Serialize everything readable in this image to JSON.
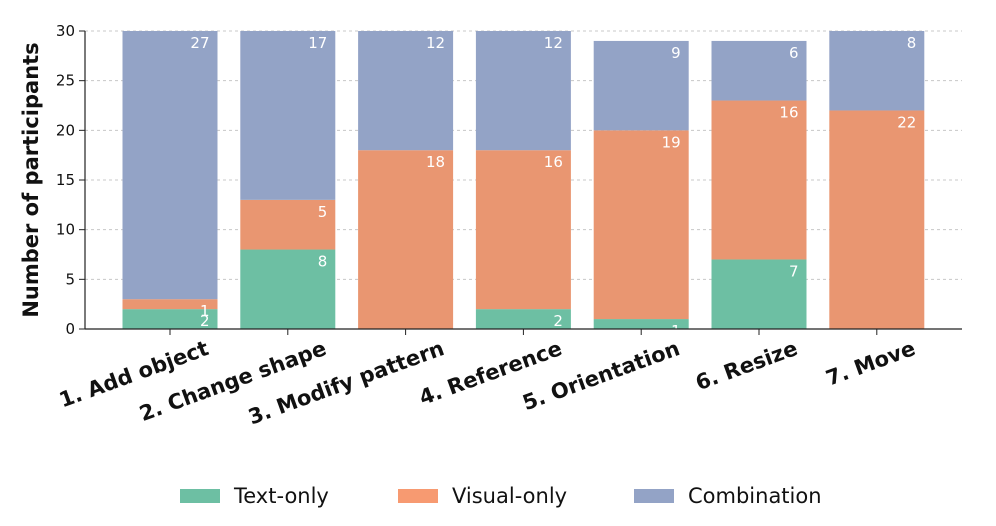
{
  "chart_data": {
    "type": "bar",
    "stacked": true,
    "title": "",
    "xlabel": "",
    "ylabel": "Number of participants",
    "ylim": [
      0,
      30
    ],
    "yticks": [
      0,
      5,
      10,
      15,
      20,
      25,
      30
    ],
    "grid": true,
    "legend_position": "bottom",
    "categories": [
      "1. Add object",
      "2. Change shape",
      "3. Modify pattern",
      "4. Reference",
      "5. Orientation",
      "6. Resize",
      "7. Move"
    ],
    "series": [
      {
        "name": "Text-only",
        "color": "#6dbfa3",
        "values": [
          2,
          8,
          0,
          2,
          1,
          7,
          0
        ],
        "labels": [
          "2",
          "8",
          "",
          "2",
          "1",
          "7",
          ""
        ]
      },
      {
        "name": "Visual-only",
        "color": "#e99671",
        "values": [
          1,
          5,
          18,
          16,
          19,
          16,
          22
        ],
        "labels": [
          "1",
          "5",
          "18",
          "16",
          "19",
          "16",
          "22"
        ]
      },
      {
        "name": "Combination",
        "color": "#93a3c6",
        "values": [
          27,
          17,
          12,
          12,
          9,
          6,
          8
        ],
        "labels": [
          "27",
          "17",
          "12",
          "12",
          "9",
          "6",
          "8"
        ]
      }
    ]
  },
  "legend": {
    "items": [
      {
        "label": "Text-only",
        "color": "#6dbfa3"
      },
      {
        "label": "Visual-only",
        "color": "#f79a71"
      },
      {
        "label": "Combination",
        "color": "#93a3c6"
      }
    ]
  }
}
